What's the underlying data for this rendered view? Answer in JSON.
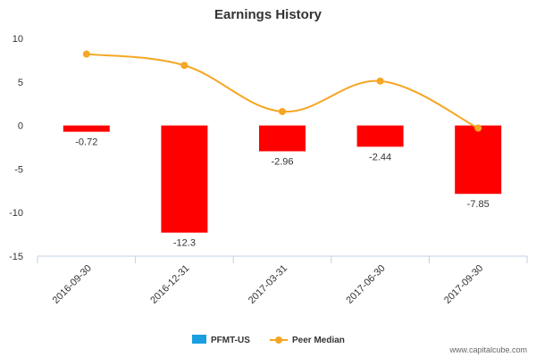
{
  "chart_data": {
    "type": "bar",
    "title": "Earnings History",
    "xlabel": "",
    "ylabel": "",
    "categories": [
      "2016-09-30",
      "2016-12-31",
      "2017-03-31",
      "2017-06-30",
      "2017-09-30"
    ],
    "ylim": [
      -15,
      10
    ],
    "yticks": [
      10,
      5,
      0,
      -5,
      -10,
      -15
    ],
    "grid": false,
    "legend_placement": "bottom-center",
    "series": [
      {
        "name": "PFMT-US",
        "kind": "bar",
        "values": [
          -0.72,
          -12.3,
          -2.96,
          -2.44,
          -7.85
        ],
        "labels": [
          "-0.72",
          "-12.3",
          "-2.96",
          "-2.44",
          "-7.85"
        ],
        "bar_color": "#ff0000",
        "legend_color": "#1a9fe0"
      },
      {
        "name": "Peer Median",
        "kind": "line",
        "values": [
          8.2,
          6.9,
          1.6,
          5.1,
          -0.3
        ],
        "color": "#f5a623"
      }
    ]
  },
  "watermark": "www.capitalcube.com"
}
